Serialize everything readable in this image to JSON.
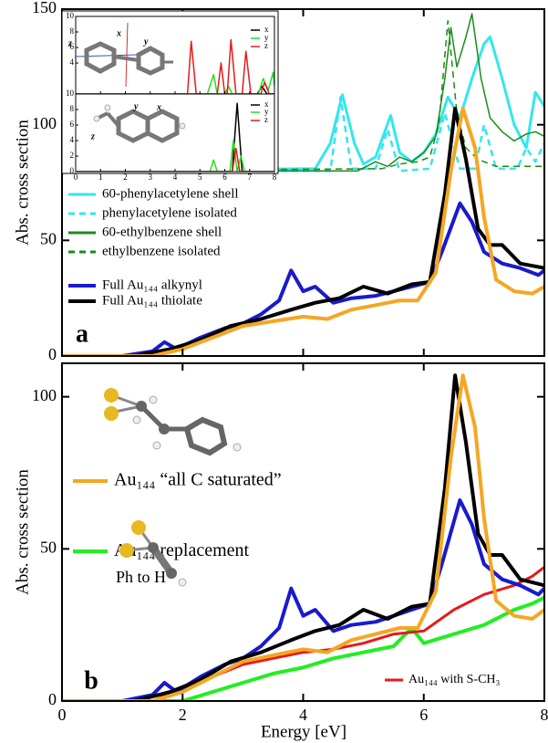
{
  "chart_data": [
    {
      "type": "line",
      "ylabel": "Abs. cross section",
      "annotation": "a",
      "xlim": [
        0,
        8
      ],
      "xticks": [
        0,
        2,
        4,
        6,
        8
      ],
      "xtick_labels": false,
      "ylim": [
        0,
        150
      ],
      "yticks": [
        0,
        50,
        100,
        150
      ],
      "series": [
        {
          "name": "60-phenylacetylene shell",
          "color": "#33e6f0",
          "linestyle": "solid",
          "x": [
            0,
            4.2,
            4.45,
            4.65,
            4.85,
            5.0,
            5.2,
            5.45,
            5.6,
            5.8,
            6.0,
            6.2,
            6.4,
            6.6,
            6.8,
            7.0,
            7.1,
            7.3,
            7.5,
            7.7,
            7.85,
            8
          ],
          "values": [
            80,
            81,
            92,
            113,
            92,
            83,
            86,
            104,
            88,
            84,
            88,
            96,
            112,
            103,
            120,
            135,
            138,
            120,
            100,
            90,
            114,
            108
          ]
        },
        {
          "name": "phenylacetylene isolated",
          "color": "#33e6f0",
          "linestyle": "dashed",
          "x": [
            0,
            4.45,
            4.62,
            4.8,
            5.2,
            5.4,
            5.6,
            6.1,
            6.35,
            6.6,
            6.85,
            7.0,
            7.2,
            7.55,
            7.7,
            7.85,
            8
          ],
          "values": [
            80,
            80,
            112,
            81,
            81,
            98,
            80,
            81,
            105,
            81,
            81,
            100,
            81,
            81,
            90,
            84,
            92
          ]
        },
        {
          "name": "60-ethylbenzene shell",
          "color": "#1a8c1a",
          "linestyle": "solid",
          "x": [
            0,
            4.9,
            5.2,
            5.4,
            5.6,
            5.8,
            6.0,
            6.2,
            6.35,
            6.45,
            6.55,
            6.7,
            6.8,
            6.95,
            7.1,
            7.3,
            7.5,
            7.7,
            7.85,
            8
          ],
          "values": [
            80,
            80,
            84,
            82,
            86,
            84,
            88,
            95,
            120,
            142,
            125,
            138,
            148,
            120,
            103,
            97,
            93,
            96,
            97,
            95
          ]
        },
        {
          "name": "ethylbenzene isolated",
          "color": "#1a8c1a",
          "linestyle": "dashed",
          "x": [
            0,
            5.3,
            5.6,
            5.9,
            6.1,
            6.25,
            6.4,
            6.55,
            6.7,
            6.9,
            7.2,
            7.6,
            8
          ],
          "values": [
            80,
            81,
            83,
            84,
            86,
            100,
            145,
            105,
            90,
            85,
            82,
            82,
            82
          ]
        },
        {
          "name": "Full Au₁₄₄ alkynyl",
          "color": "#1a1acc",
          "linestyle": "solid",
          "x": [
            0,
            1.0,
            1.5,
            1.7,
            1.9,
            2.3,
            2.7,
            3.0,
            3.3,
            3.6,
            3.8,
            4.0,
            4.2,
            4.5,
            4.8,
            5.2,
            5.5,
            5.8,
            6.1,
            6.3,
            6.6,
            6.8,
            7.0,
            7.3,
            7.6,
            7.9,
            8
          ],
          "values": [
            0,
            0,
            2,
            6,
            3,
            8,
            12,
            14,
            18,
            24,
            37,
            28,
            30,
            23,
            25,
            26,
            28,
            30,
            32,
            45,
            66,
            58,
            45,
            40,
            38,
            35,
            37
          ]
        },
        {
          "name": "Full Au₁₄₄ thiolate",
          "color": "#000000",
          "linestyle": "solid",
          "x": [
            0,
            1.2,
            1.8,
            2.3,
            2.8,
            3.3,
            3.8,
            4.2,
            4.6,
            5.0,
            5.4,
            5.8,
            6.1,
            6.35,
            6.52,
            6.7,
            6.9,
            7.1,
            7.3,
            7.6,
            8
          ],
          "values": [
            0,
            0,
            3,
            7,
            13,
            16,
            20,
            23,
            25,
            30,
            27,
            31,
            32,
            70,
            107,
            85,
            55,
            48,
            48,
            40,
            38
          ]
        },
        {
          "color": "#f5a623",
          "linestyle": "solid",
          "x": [
            0,
            1.5,
            2.0,
            2.5,
            3.0,
            3.5,
            4.0,
            4.4,
            4.8,
            5.2,
            5.6,
            5.9,
            6.2,
            6.45,
            6.65,
            6.85,
            7.0,
            7.2,
            7.5,
            7.8,
            8
          ],
          "values": [
            0,
            0,
            3,
            8,
            13,
            15,
            17,
            16,
            20,
            22,
            24,
            24,
            36,
            80,
            107,
            90,
            60,
            33,
            28,
            27,
            30
          ]
        }
      ]
    },
    {
      "type": "line",
      "ylabel": "Abs. cross section",
      "xlabel": "Energy [eV]",
      "annotation": "b",
      "xlim": [
        0,
        8
      ],
      "xticks": [
        0,
        2,
        4,
        6,
        8
      ],
      "xtick_labels": true,
      "ylim": [
        0,
        111
      ],
      "yticks": [
        0,
        50,
        100
      ],
      "series": [
        {
          "name": "Au₁₄₄ replacement\nPh to H",
          "color": "#22ee22",
          "linestyle": "solid",
          "x": [
            0,
            2.0,
            2.5,
            3.0,
            3.5,
            4.0,
            4.5,
            5.0,
            5.5,
            5.8,
            6.0,
            6.5,
            7.0,
            7.5,
            7.8,
            8
          ],
          "values": [
            0,
            0,
            3,
            6,
            9,
            11,
            14,
            16,
            18,
            24,
            19,
            22,
            25,
            30,
            32,
            34
          ]
        },
        {
          "name": "Au₁₄₄ with S-CH₃",
          "color": "#e61a1a",
          "linestyle": "solid",
          "x": [
            0,
            1.5,
            2.0,
            2.5,
            3.0,
            3.5,
            4.0,
            4.5,
            5.0,
            5.5,
            6.0,
            6.5,
            7.0,
            7.5,
            7.8,
            8
          ],
          "values": [
            0,
            0,
            4,
            8,
            12,
            14,
            16,
            17,
            19,
            22,
            23,
            30,
            35,
            38,
            41,
            44
          ]
        },
        {
          "color": "#1a1acc",
          "linestyle": "solid",
          "x": [
            0,
            1.0,
            1.5,
            1.7,
            1.9,
            2.3,
            2.7,
            3.0,
            3.3,
            3.6,
            3.8,
            4.0,
            4.2,
            4.5,
            4.8,
            5.2,
            5.5,
            5.8,
            6.1,
            6.3,
            6.6,
            6.8,
            7.0,
            7.3,
            7.6,
            7.9,
            8
          ],
          "values": [
            0,
            0,
            2,
            6,
            3,
            8,
            12,
            14,
            18,
            24,
            37,
            28,
            30,
            23,
            25,
            26,
            28,
            30,
            32,
            45,
            66,
            58,
            45,
            40,
            38,
            35,
            37
          ]
        },
        {
          "color": "#000000",
          "linestyle": "solid",
          "x": [
            0,
            1.2,
            1.8,
            2.3,
            2.8,
            3.3,
            3.8,
            4.2,
            4.6,
            5.0,
            5.4,
            5.8,
            6.1,
            6.35,
            6.52,
            6.7,
            6.9,
            7.1,
            7.3,
            7.6,
            8
          ],
          "values": [
            0,
            0,
            3,
            7,
            13,
            16,
            20,
            23,
            25,
            30,
            27,
            31,
            32,
            70,
            107,
            85,
            55,
            48,
            48,
            40,
            38
          ]
        },
        {
          "name": "Au₁₄₄ “all C saturated”",
          "color": "#f5a623",
          "linestyle": "solid",
          "x": [
            0,
            1.5,
            2.0,
            2.5,
            3.0,
            3.5,
            4.0,
            4.4,
            4.8,
            5.2,
            5.6,
            5.9,
            6.2,
            6.45,
            6.65,
            6.85,
            7.0,
            7.2,
            7.5,
            7.8,
            8
          ],
          "values": [
            0,
            0,
            3,
            8,
            13,
            15,
            17,
            16,
            20,
            22,
            24,
            24,
            36,
            80,
            107,
            90,
            60,
            33,
            28,
            27,
            30
          ]
        }
      ]
    },
    {
      "type": "line",
      "xlim": [
        0,
        8
      ],
      "xticks": [
        0,
        1,
        2,
        3,
        4,
        5,
        6,
        7,
        8
      ],
      "xtick_labels": false,
      "ylim": [
        0,
        10
      ],
      "yticks": [
        4,
        6,
        8,
        10
      ],
      "molecule_labels": [
        "z",
        "x",
        "y"
      ],
      "series": [
        {
          "name": "x",
          "color": "#000000",
          "linestyle": "solid",
          "x": [
            0,
            7.3,
            7.5,
            7.7,
            8
          ],
          "values": [
            0,
            0,
            1,
            0,
            0
          ]
        },
        {
          "name": "y",
          "color": "#22dd22",
          "linestyle": "solid",
          "x": [
            0,
            5.3,
            5.55,
            5.7,
            6.0,
            6.15,
            6.3,
            7.35,
            7.55,
            7.75,
            7.95,
            8
          ],
          "values": [
            0,
            0,
            2.5,
            0,
            0,
            1,
            0,
            0,
            2,
            0.5,
            2.8,
            1
          ]
        },
        {
          "name": "z",
          "color": "#e61a1a",
          "linestyle": "solid",
          "x": [
            0,
            4.5,
            4.65,
            4.85,
            5.7,
            5.85,
            6.0,
            6.1,
            6.25,
            6.45,
            6.7,
            6.85,
            7.05,
            7.45,
            7.6,
            7.8,
            8
          ],
          "values": [
            0,
            0,
            6.8,
            0,
            0,
            4,
            0,
            0,
            7,
            0,
            0,
            5.5,
            0,
            0,
            1.5,
            0,
            0
          ]
        }
      ]
    },
    {
      "type": "line",
      "xlim": [
        0,
        8
      ],
      "xticks": [
        0,
        1,
        2,
        3,
        4,
        5,
        6,
        7,
        8
      ],
      "xtick_labels": true,
      "ylim": [
        0,
        10
      ],
      "yticks": [
        0,
        2,
        4,
        6,
        8,
        10
      ],
      "molecule_labels": [
        "y",
        "x",
        "z"
      ],
      "series": [
        {
          "name": "x",
          "color": "#000000",
          "linestyle": "solid",
          "x": [
            0,
            6.3,
            6.5,
            6.7,
            8
          ],
          "values": [
            0,
            0,
            8.8,
            0,
            0
          ]
        },
        {
          "name": "y",
          "color": "#22dd22",
          "linestyle": "solid",
          "x": [
            0,
            5.4,
            5.55,
            5.7,
            6.2,
            6.35,
            6.5,
            6.65,
            6.8,
            8
          ],
          "values": [
            0,
            0,
            1.5,
            0,
            0,
            4,
            0,
            2,
            0,
            0
          ]
        },
        {
          "name": "z",
          "color": "#e61a1a",
          "linestyle": "solid",
          "x": [
            0,
            6.3,
            6.45,
            6.6,
            8
          ],
          "values": [
            0,
            0,
            3,
            0,
            0
          ]
        }
      ]
    }
  ]
}
